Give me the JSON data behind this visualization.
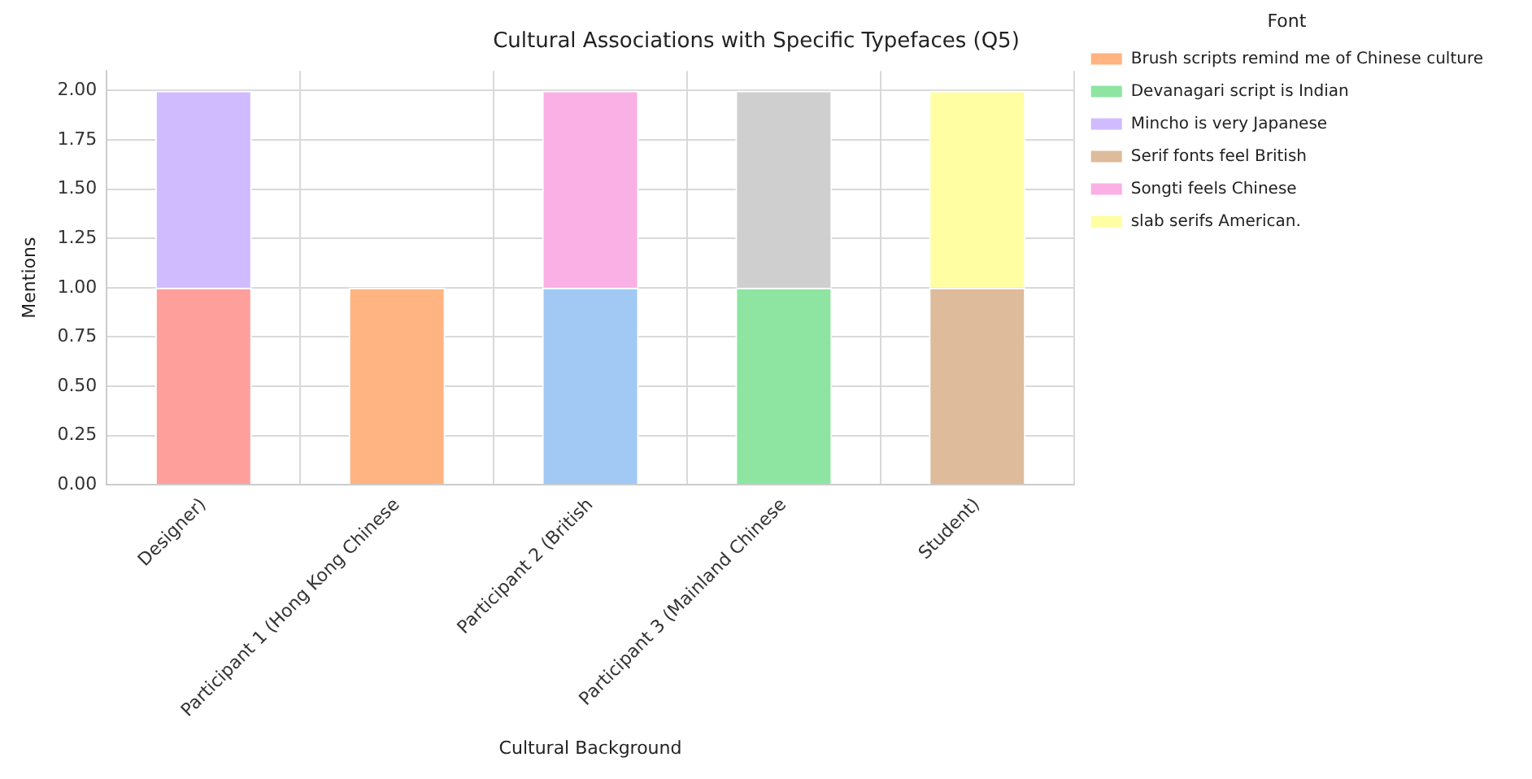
{
  "chart_data": {
    "type": "bar",
    "title": "Cultural Associations with Specific Typefaces (Q5)",
    "xlabel": "Cultural Background",
    "ylabel": "Mentions",
    "legend_title": "Font",
    "categories": [
      "Designer)",
      "Participant 1 (Hong Kong Chinese",
      "Participant 2 (British",
      "Participant 3 (Mainland Chinese",
      "Student)"
    ],
    "stacked": true,
    "series": [
      {
        "color": "#a1c9f4",
        "values": [
          null,
          null,
          1,
          null,
          null
        ]
      },
      {
        "name": "Brush scripts remind me of Chinese culture",
        "color": "#ffb482",
        "values": [
          null,
          1,
          null,
          null,
          null
        ]
      },
      {
        "name": "Devanagari script is Indian",
        "color": "#8de5a1",
        "values": [
          null,
          null,
          null,
          1,
          null
        ]
      },
      {
        "color": "#ff9f9b",
        "values": [
          1,
          null,
          null,
          null,
          null
        ]
      },
      {
        "name": "Mincho is very Japanese",
        "color": "#d0bbff",
        "values": [
          1,
          null,
          null,
          null,
          null
        ]
      },
      {
        "name": "Serif fonts feel British",
        "color": "#debb9b",
        "values": [
          null,
          null,
          null,
          null,
          1
        ]
      },
      {
        "name": "Songti feels Chinese",
        "color": "#fab0e4",
        "values": [
          null,
          null,
          1,
          null,
          null
        ]
      },
      {
        "color": "#cfcfcf",
        "values": [
          null,
          null,
          null,
          1,
          null
        ]
      },
      {
        "name": "slab serifs American.",
        "color": "#fffea3",
        "values": [
          null,
          null,
          null,
          null,
          1
        ]
      }
    ],
    "ylim": [
      0,
      2.1
    ],
    "yticks": [
      {
        "value": 0,
        "label": "0.00"
      },
      {
        "value": 0.25,
        "label": "0.25"
      },
      {
        "value": 0.5,
        "label": "0.50"
      },
      {
        "value": 0.75,
        "label": "0.75"
      },
      {
        "value": 1,
        "label": "1.00"
      },
      {
        "value": 1.25,
        "label": "1.25"
      },
      {
        "value": 1.5,
        "label": "1.50"
      },
      {
        "value": 1.75,
        "label": "1.75"
      },
      {
        "value": 2,
        "label": "2.00"
      }
    ],
    "grid": true,
    "legend": "top right"
  }
}
